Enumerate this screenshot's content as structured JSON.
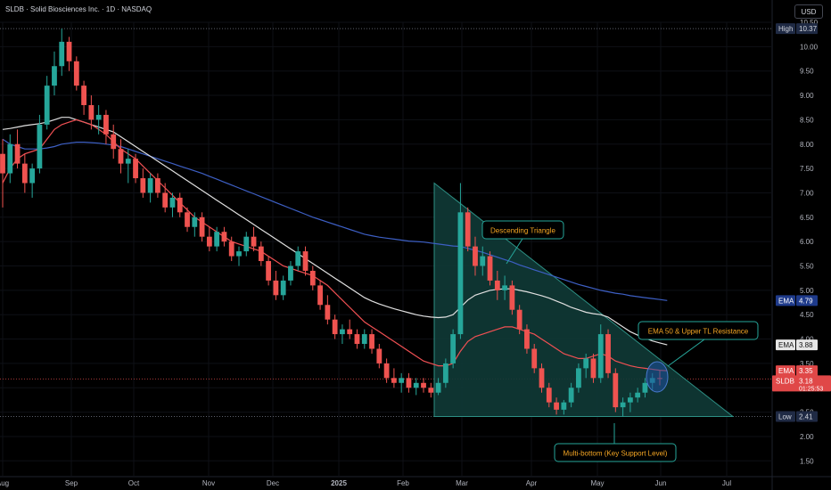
{
  "header": {
    "symbol_title": "SLDB · Solid Biosciences Inc. · 1D · NASDAQ",
    "currency": "USD"
  },
  "chart_data": {
    "type": "candlestick",
    "title": "SLDB · Solid Biosciences Inc. · 1D · NASDAQ",
    "y_axis_ticks": [
      "10.50",
      "10.00",
      "9.50",
      "9.00",
      "8.50",
      "8.00",
      "7.50",
      "7.00",
      "6.50",
      "6.00",
      "5.50",
      "5.00",
      "4.50",
      "4.00",
      "3.50",
      "3.00",
      "2.50",
      "2.00",
      "1.50"
    ],
    "x_axis_ticks": [
      "Aug",
      "Sep",
      "Oct",
      "Nov",
      "Dec",
      "2025",
      "Feb",
      "Mar",
      "Apr",
      "May",
      "Jun",
      "Jul"
    ],
    "ylim": [
      1.35,
      10.75
    ],
    "colors": {
      "up": "#26a69a",
      "down": "#ef5350",
      "ema50": "#f05053",
      "ema100": "#e0e0e0",
      "ema200": "#3d5fc4",
      "triangle_fill": "#0f3a36",
      "triangle_edge": "#2d8f84",
      "callout": "#26a69a",
      "callout_text": "#f5a623"
    },
    "price_labels": {
      "high": {
        "label": "High",
        "value": "10.37"
      },
      "low": {
        "label": "Low",
        "value": "2.41"
      },
      "ema200": {
        "label": "EMA",
        "value": "4.79"
      },
      "ema100": {
        "label": "EMA",
        "value": "3.88"
      },
      "ema50": {
        "label": "EMA",
        "value": "3.35"
      },
      "last": {
        "label": "SLDB",
        "value": "3.18",
        "countdown": "01:25:53"
      }
    },
    "candles": [
      [
        7.8,
        8.1,
        6.7,
        7.4
      ],
      [
        7.4,
        8.2,
        7.2,
        8.0
      ],
      [
        8.0,
        8.3,
        7.5,
        7.6
      ],
      [
        7.6,
        7.8,
        7.0,
        7.2
      ],
      [
        7.2,
        7.6,
        6.9,
        7.5
      ],
      [
        7.5,
        8.6,
        7.4,
        8.4
      ],
      [
        8.4,
        9.4,
        8.3,
        9.2
      ],
      [
        9.2,
        9.9,
        9.0,
        9.6
      ],
      [
        9.6,
        10.37,
        9.4,
        10.1
      ],
      [
        10.1,
        10.2,
        9.5,
        9.7
      ],
      [
        9.7,
        9.8,
        9.1,
        9.2
      ],
      [
        9.2,
        9.3,
        8.6,
        8.8
      ],
      [
        8.8,
        9.0,
        8.3,
        8.5
      ],
      [
        8.5,
        8.8,
        8.2,
        8.6
      ],
      [
        8.6,
        8.7,
        8.0,
        8.2
      ],
      [
        8.2,
        8.4,
        7.7,
        7.9
      ],
      [
        7.9,
        8.1,
        7.4,
        7.6
      ],
      [
        7.6,
        7.9,
        7.2,
        7.7
      ],
      [
        7.7,
        7.8,
        7.2,
        7.3
      ],
      [
        7.3,
        7.5,
        6.9,
        7.0
      ],
      [
        7.0,
        7.4,
        6.8,
        7.3
      ],
      [
        7.3,
        7.4,
        6.9,
        7.0
      ],
      [
        7.0,
        7.2,
        6.6,
        6.7
      ],
      [
        6.7,
        7.0,
        6.5,
        6.9
      ],
      [
        6.9,
        7.0,
        6.5,
        6.6
      ],
      [
        6.6,
        6.7,
        6.2,
        6.3
      ],
      [
        6.3,
        6.6,
        6.1,
        6.5
      ],
      [
        6.5,
        6.6,
        6.0,
        6.1
      ],
      [
        6.1,
        6.3,
        5.8,
        5.9
      ],
      [
        5.9,
        6.3,
        5.8,
        6.2
      ],
      [
        6.2,
        6.3,
        5.9,
        6.0
      ],
      [
        6.0,
        6.1,
        5.6,
        5.7
      ],
      [
        5.7,
        5.9,
        5.5,
        5.8
      ],
      [
        5.8,
        6.2,
        5.7,
        6.1
      ],
      [
        6.1,
        6.3,
        5.8,
        5.9
      ],
      [
        5.9,
        6.0,
        5.5,
        5.6
      ],
      [
        5.6,
        5.7,
        5.1,
        5.2
      ],
      [
        5.2,
        5.4,
        4.8,
        4.9
      ],
      [
        4.9,
        5.3,
        4.8,
        5.2
      ],
      [
        5.2,
        5.6,
        5.1,
        5.5
      ],
      [
        5.5,
        5.9,
        5.4,
        5.8
      ],
      [
        5.8,
        5.9,
        5.3,
        5.4
      ],
      [
        5.4,
        5.5,
        5.0,
        5.1
      ],
      [
        5.1,
        5.2,
        4.6,
        4.7
      ],
      [
        4.7,
        4.9,
        4.3,
        4.4
      ],
      [
        4.4,
        4.5,
        4.0,
        4.1
      ],
      [
        4.1,
        4.3,
        3.9,
        4.2
      ],
      [
        4.2,
        4.4,
        4.0,
        4.1
      ],
      [
        4.1,
        4.2,
        3.8,
        3.9
      ],
      [
        3.9,
        4.2,
        3.8,
        4.1
      ],
      [
        4.1,
        4.2,
        3.7,
        3.8
      ],
      [
        3.8,
        3.9,
        3.4,
        3.5
      ],
      [
        3.5,
        3.6,
        3.1,
        3.2
      ],
      [
        3.2,
        3.4,
        3.0,
        3.1
      ],
      [
        3.1,
        3.3,
        2.9,
        3.2
      ],
      [
        3.2,
        3.3,
        2.9,
        3.0
      ],
      [
        3.0,
        3.2,
        2.85,
        3.1
      ],
      [
        3.1,
        3.2,
        2.9,
        3.0
      ],
      [
        3.0,
        3.1,
        2.8,
        2.9
      ],
      [
        2.9,
        3.2,
        2.85,
        3.1
      ],
      [
        3.1,
        3.6,
        3.0,
        3.5
      ],
      [
        3.5,
        4.2,
        3.4,
        4.1
      ],
      [
        4.1,
        7.2,
        4.0,
        6.6
      ],
      [
        6.6,
        6.7,
        5.8,
        5.9
      ],
      [
        5.9,
        6.1,
        5.3,
        5.5
      ],
      [
        5.5,
        5.9,
        5.3,
        5.7
      ],
      [
        5.7,
        5.8,
        5.1,
        5.2
      ],
      [
        5.2,
        5.4,
        4.8,
        5.0
      ],
      [
        5.0,
        5.3,
        4.8,
        5.1
      ],
      [
        5.1,
        5.2,
        4.5,
        4.6
      ],
      [
        4.6,
        4.7,
        4.1,
        4.2
      ],
      [
        4.2,
        4.3,
        3.7,
        3.8
      ],
      [
        3.8,
        3.9,
        3.3,
        3.4
      ],
      [
        3.4,
        3.5,
        2.9,
        3.0
      ],
      [
        3.0,
        3.1,
        2.6,
        2.7
      ],
      [
        2.7,
        2.8,
        2.45,
        2.55
      ],
      [
        2.55,
        2.75,
        2.45,
        2.7
      ],
      [
        2.7,
        3.1,
        2.6,
        3.0
      ],
      [
        3.0,
        3.5,
        2.9,
        3.4
      ],
      [
        3.4,
        3.7,
        3.2,
        3.6
      ],
      [
        3.6,
        3.7,
        3.1,
        3.2
      ],
      [
        3.2,
        4.3,
        3.1,
        4.1
      ],
      [
        4.1,
        4.2,
        3.2,
        3.3
      ],
      [
        3.3,
        3.4,
        2.5,
        2.6
      ],
      [
        2.6,
        2.8,
        2.41,
        2.7
      ],
      [
        2.7,
        2.9,
        2.5,
        2.8
      ],
      [
        2.8,
        3.0,
        2.7,
        2.9
      ],
      [
        2.9,
        3.2,
        2.8,
        3.1
      ],
      [
        3.1,
        3.3,
        2.95,
        3.2
      ],
      [
        3.2,
        3.35,
        3.05,
        3.18
      ]
    ],
    "ema50": [
      7.2,
      7.5,
      7.7,
      7.8,
      7.85,
      7.9,
      8.1,
      8.3,
      8.4,
      8.45,
      8.5,
      8.45,
      8.4,
      8.3,
      8.2,
      8.05,
      7.9,
      7.8,
      7.7,
      7.55,
      7.4,
      7.25,
      7.1,
      6.95,
      6.8,
      6.65,
      6.5,
      6.4,
      6.3,
      6.2,
      6.1,
      6.0,
      5.95,
      5.9,
      5.85,
      5.8,
      5.7,
      5.6,
      5.5,
      5.45,
      5.4,
      5.35,
      5.3,
      5.2,
      5.1,
      4.95,
      4.8,
      4.65,
      4.5,
      4.35,
      4.25,
      4.15,
      4.05,
      3.95,
      3.85,
      3.75,
      3.65,
      3.55,
      3.5,
      3.45,
      3.45,
      3.5,
      3.75,
      3.95,
      4.05,
      4.1,
      4.15,
      4.2,
      4.25,
      4.25,
      4.2,
      4.15,
      4.1,
      4.0,
      3.9,
      3.8,
      3.7,
      3.65,
      3.6,
      3.6,
      3.65,
      3.7,
      3.65,
      3.55,
      3.5,
      3.45,
      3.42,
      3.4,
      3.38,
      3.36,
      3.35
    ],
    "ema100": [
      8.3,
      8.32,
      8.35,
      8.38,
      8.4,
      8.42,
      8.45,
      8.5,
      8.55,
      8.55,
      8.5,
      8.45,
      8.4,
      8.35,
      8.3,
      8.25,
      8.15,
      8.05,
      7.95,
      7.85,
      7.75,
      7.65,
      7.55,
      7.45,
      7.35,
      7.25,
      7.15,
      7.05,
      6.95,
      6.85,
      6.75,
      6.65,
      6.55,
      6.45,
      6.35,
      6.25,
      6.15,
      6.05,
      5.95,
      5.85,
      5.75,
      5.65,
      5.55,
      5.45,
      5.35,
      5.25,
      5.15,
      5.05,
      4.95,
      4.85,
      4.78,
      4.72,
      4.67,
      4.62,
      4.58,
      4.54,
      4.5,
      4.47,
      4.45,
      4.44,
      4.45,
      4.5,
      4.65,
      4.8,
      4.9,
      4.95,
      5.0,
      5.02,
      5.03,
      5.03,
      5.0,
      4.97,
      4.93,
      4.89,
      4.84,
      4.78,
      4.72,
      4.65,
      4.6,
      4.55,
      4.52,
      4.5,
      4.45,
      4.35,
      4.25,
      4.15,
      4.08,
      4.02,
      3.96,
      3.92,
      3.88
    ],
    "ema200": [
      8.1,
      8.0,
      7.95,
      7.9,
      7.9,
      7.9,
      7.92,
      7.95,
      8.0,
      8.02,
      8.04,
      8.04,
      8.03,
      8.02,
      8.0,
      7.98,
      7.95,
      7.9,
      7.85,
      7.8,
      7.75,
      7.7,
      7.65,
      7.6,
      7.55,
      7.5,
      7.45,
      7.4,
      7.34,
      7.28,
      7.22,
      7.16,
      7.1,
      7.04,
      6.98,
      6.92,
      6.86,
      6.8,
      6.74,
      6.68,
      6.62,
      6.56,
      6.5,
      6.45,
      6.4,
      6.35,
      6.3,
      6.25,
      6.2,
      6.15,
      6.12,
      6.09,
      6.07,
      6.05,
      6.03,
      6.01,
      6.0,
      5.99,
      5.97,
      5.95,
      5.93,
      5.91,
      5.9,
      5.86,
      5.82,
      5.78,
      5.73,
      5.68,
      5.63,
      5.58,
      5.52,
      5.47,
      5.42,
      5.37,
      5.32,
      5.27,
      5.22,
      5.17,
      5.12,
      5.08,
      5.04,
      5.0,
      4.97,
      4.94,
      4.92,
      4.89,
      4.87,
      4.85,
      4.83,
      4.81,
      4.79
    ],
    "pattern": {
      "name": "Descending Triangle",
      "apex_price": 7.2,
      "apex_month": "Feb",
      "support_price": 2.41
    },
    "annotations": [
      {
        "label": "Descending Triangle"
      },
      {
        "label": "EMA 50 & Upper TL Resistance"
      },
      {
        "label": "Multi-bottom (Key Support Level)"
      }
    ]
  }
}
